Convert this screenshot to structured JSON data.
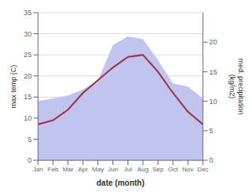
{
  "chart_data": {
    "type": "line",
    "categories": [
      "Jan",
      "Feb",
      "Mar",
      "Apr",
      "May",
      "Jun",
      "Jul",
      "Aug",
      "Sep",
      "Oct",
      "Nov",
      "Dec"
    ],
    "series": [
      {
        "type": "area",
        "color": "#c0c4ee",
        "axis": "y2",
        "values": [
          10.0,
          10.5,
          11.0,
          12.0,
          13.5,
          19.5,
          21.0,
          20.5,
          17.0,
          13.0,
          12.5,
          10.5
        ]
      },
      {
        "type": "line",
        "color": "#993344",
        "values": [
          8.5,
          9.5,
          12.0,
          16.0,
          19.0,
          22.0,
          24.5,
          25.0,
          21.0,
          16.0,
          11.5,
          8.5
        ]
      }
    ],
    "xlabel": "date (month)",
    "ylabel": "max temp (C)",
    "y2label": "med. precipitation\n(kg/m2)",
    "ylim": [
      0,
      35
    ],
    "yticks": [
      0,
      5,
      10,
      15,
      20,
      25,
      30,
      35
    ],
    "y2lim": [
      0,
      25
    ],
    "y2ticks": [
      0,
      5,
      10,
      15,
      20
    ],
    "grid": true
  }
}
